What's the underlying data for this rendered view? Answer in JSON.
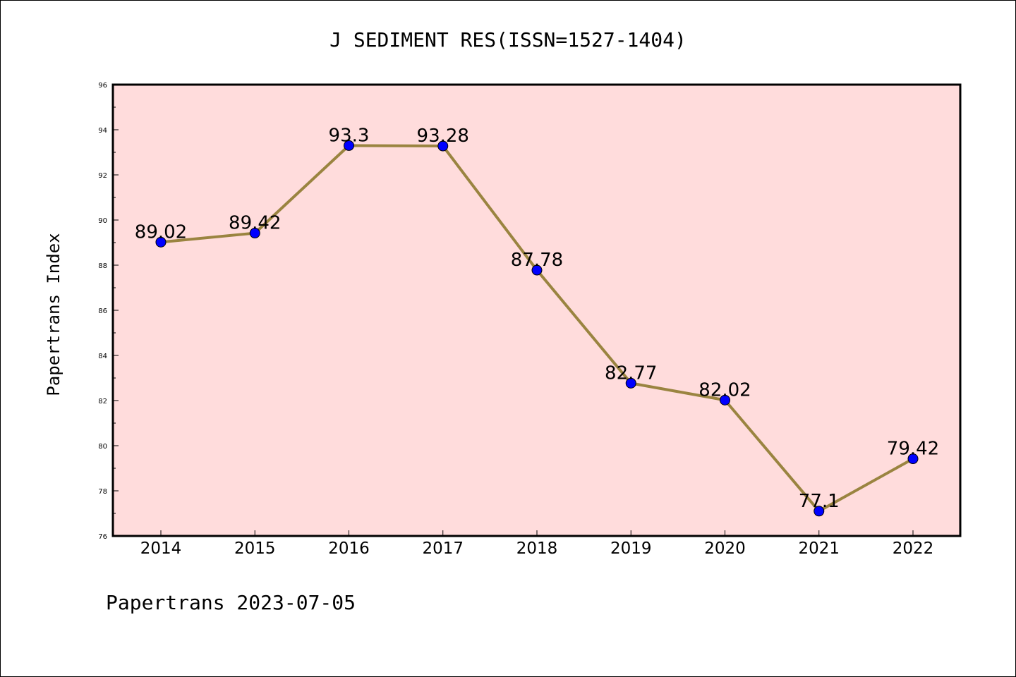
{
  "chart_data": {
    "type": "line",
    "title": "J SEDIMENT RES(ISSN=1527-1404)",
    "xlabel": "",
    "ylabel": "Papertrans Index",
    "categories": [
      "2014",
      "2015",
      "2016",
      "2017",
      "2018",
      "2019",
      "2020",
      "2021",
      "2022"
    ],
    "values": [
      89.02,
      89.42,
      93.3,
      93.28,
      87.78,
      82.77,
      82.02,
      77.1,
      79.42
    ],
    "data_labels": [
      "89.02",
      "89.42",
      "93.3",
      "93.28",
      "87.78",
      "82.77",
      "82.02",
      "77.1",
      "79.42"
    ],
    "ylim": [
      76,
      96
    ],
    "yticks": [
      76,
      78,
      80,
      82,
      84,
      86,
      88,
      90,
      92,
      94,
      96
    ],
    "grid": false,
    "legend": "none",
    "colors": {
      "plot_background": "#ffdcdc",
      "line": "#9a8440",
      "marker": "#0000ff"
    }
  },
  "footer": "Papertrans 2023-07-05"
}
